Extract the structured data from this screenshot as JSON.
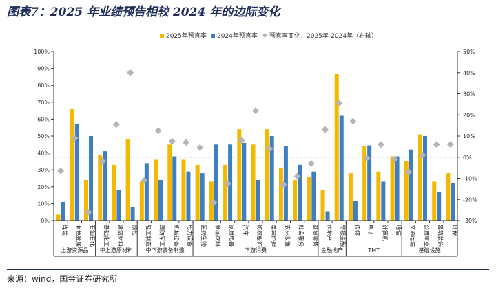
{
  "figure": {
    "title": "图表7：2025 年业绩预告相较 2024 年的边际变化",
    "source": "来源：wind，国金证券研究所"
  },
  "colors": {
    "bar_2025": "#f5b800",
    "bar_2024": "#3f7fc1",
    "marker": "#b5b5b5",
    "axis": "#333333",
    "title": "#1f2d5a"
  },
  "chart_data": {
    "type": "bar",
    "legend": {
      "position": "top-center",
      "items": [
        "2025年预喜率",
        "2024年预喜率",
        "预喜率变化：2025年-2024年（右轴）"
      ]
    },
    "categories": [
      "煤炭",
      "有色金属",
      "石油石化",
      "基础化工",
      "建筑材料",
      "钢铁",
      "轻工制造",
      "国防军工",
      "机械设备",
      "电力设备",
      "医药生物",
      "食品饮料",
      "家用电器",
      "汽车",
      "纺织服饰",
      "美容护理",
      "农林牧渔",
      "社会服务",
      "商贸零售",
      "房地产",
      "非银金融",
      "传媒",
      "电子",
      "计算机",
      "通信",
      "交通运输",
      "公用事业",
      "建筑装饰",
      "环保"
    ],
    "series": [
      {
        "name": "2025年预喜率",
        "axis": "left",
        "kind": "bar",
        "values": [
          3.5,
          66,
          24,
          39,
          33,
          48,
          23,
          36,
          45,
          36,
          33,
          23,
          33,
          54,
          45,
          54,
          31,
          24,
          26,
          18,
          87,
          28,
          44,
          29,
          38,
          35,
          51,
          23,
          28
        ]
      },
      {
        "name": "2024年预喜率",
        "axis": "left",
        "kind": "bar",
        "values": [
          11,
          57,
          50,
          41,
          18,
          8,
          34,
          24,
          38,
          29,
          28,
          45,
          45,
          46,
          24,
          50,
          44,
          33,
          29,
          5.5,
          62,
          11.5,
          44.5,
          23,
          38,
          42,
          50,
          17,
          22
        ]
      },
      {
        "name": "预喜率变化：2025年-2024年（右轴）",
        "axis": "right",
        "kind": "scatter",
        "values": [
          -6.5,
          9,
          -26,
          -2,
          15.5,
          40,
          -11,
          12.5,
          7.5,
          7,
          4.5,
          -21.5,
          -12.5,
          8,
          22,
          4,
          -13,
          -9,
          -3,
          13,
          25.5,
          17,
          -0.5,
          6,
          -1,
          -7,
          1,
          6,
          6
        ]
      }
    ],
    "y_left": {
      "min": 0,
      "max": 100,
      "step": 10,
      "format": "percent",
      "ticks": [
        "0%",
        "10%",
        "20%",
        "30%",
        "40%",
        "50%",
        "60%",
        "70%",
        "80%",
        "90%",
        "100%"
      ]
    },
    "y_right": {
      "min": -30,
      "max": 50,
      "step": 10,
      "format": "percent",
      "ticks": [
        "-30%",
        "-20%",
        "-10%",
        "0%",
        "10%",
        "20%",
        "30%",
        "40%",
        "50%"
      ]
    },
    "reference_line": {
      "axis": "right",
      "value": 0,
      "style": "dashed"
    },
    "groups": [
      {
        "label": "上游资源品",
        "from": 0,
        "to": 2
      },
      {
        "label": "中上游原材料",
        "from": 3,
        "to": 5
      },
      {
        "label": "中下游装备制造",
        "from": 6,
        "to": 9
      },
      {
        "label": "下游消费",
        "from": 10,
        "to": 18
      },
      {
        "label": "金融地产",
        "from": 19,
        "to": 20
      },
      {
        "label": "TMT",
        "from": 21,
        "to": 24
      },
      {
        "label": "基础设施",
        "from": 25,
        "to": 28
      }
    ]
  }
}
